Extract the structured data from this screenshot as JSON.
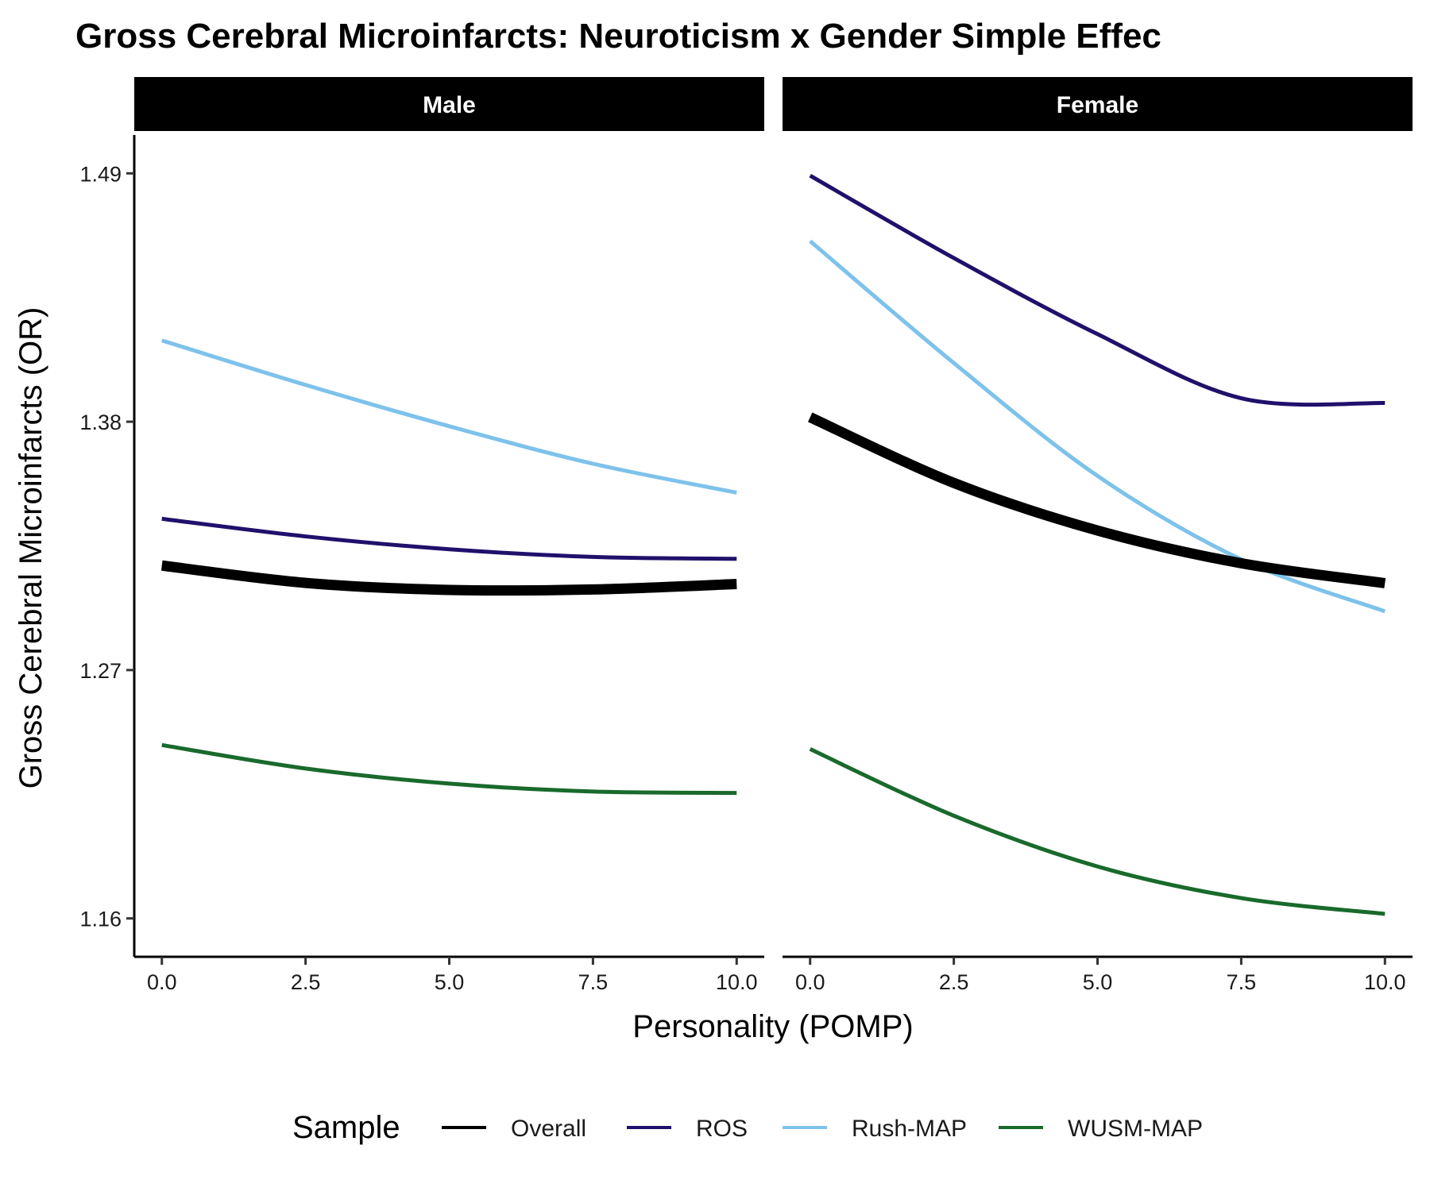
{
  "chart_data": {
    "type": "line",
    "title": "Gross Cerebral Microinfarcts: Neuroticism x Gender Simple Effec",
    "xlabel": "Personality (POMP)",
    "ylabel": "Gross Cerebral Microinfarcts (OR)",
    "x_ticks": [
      "0.0",
      "2.5",
      "5.0",
      "7.5",
      "10.0"
    ],
    "y_ticks": [
      "1.16",
      "1.27",
      "1.38",
      "1.49"
    ],
    "xlim": [
      -0.48,
      10.48
    ],
    "ylim": [
      1.143,
      1.507
    ],
    "grid": false,
    "legend": {
      "title": "Sample",
      "position": "bottom"
    },
    "panels": [
      {
        "name": "Male",
        "series": [
          {
            "name": "Overall",
            "color": "#000000",
            "x": [
              0,
              2.5,
              5,
              7.5,
              10
            ],
            "y": [
              1.3163,
              1.3086,
              1.3055,
              1.3057,
              1.3081
            ]
          },
          {
            "name": "ROS",
            "color": "#21106B",
            "x": [
              0,
              2.5,
              5,
              7.5,
              10
            ],
            "y": [
              1.337,
              1.3292,
              1.3235,
              1.3201,
              1.3193
            ]
          },
          {
            "name": "Rush-MAP",
            "color": "#7DC2EB",
            "x": [
              0,
              2.5,
              5,
              7.5,
              10
            ],
            "y": [
              1.416,
              1.3963,
              1.378,
              1.3614,
              1.3486
            ]
          },
          {
            "name": "WUSM-MAP",
            "color": "#196A2C",
            "x": [
              0,
              2.5,
              5,
              7.5,
              10
            ],
            "y": [
              1.2368,
              1.2264,
              1.2197,
              1.2162,
              1.2156
            ]
          }
        ]
      },
      {
        "name": "Female",
        "series": [
          {
            "name": "Overall",
            "color": "#000000",
            "x": [
              0,
              2.5,
              5,
              7.5,
              10
            ],
            "y": [
              1.382,
              1.3529,
              1.3318,
              1.3173,
              1.3085
            ]
          },
          {
            "name": "ROS",
            "color": "#21106B",
            "x": [
              0,
              2.5,
              5,
              7.5,
              10
            ],
            "y": [
              1.489,
              1.4525,
              1.4188,
              1.3904,
              1.3883
            ]
          },
          {
            "name": "Rush-MAP",
            "color": "#7DC2EB",
            "x": [
              0,
              2.5,
              5,
              7.5,
              10
            ],
            "y": [
              1.46,
              1.406,
              1.356,
              1.319,
              1.296
            ]
          },
          {
            "name": "WUSM-MAP",
            "color": "#196A2C",
            "x": [
              0,
              2.5,
              5,
              7.5,
              10
            ],
            "y": [
              1.235,
              1.2055,
              1.183,
              1.169,
              1.162
            ]
          }
        ]
      }
    ]
  }
}
